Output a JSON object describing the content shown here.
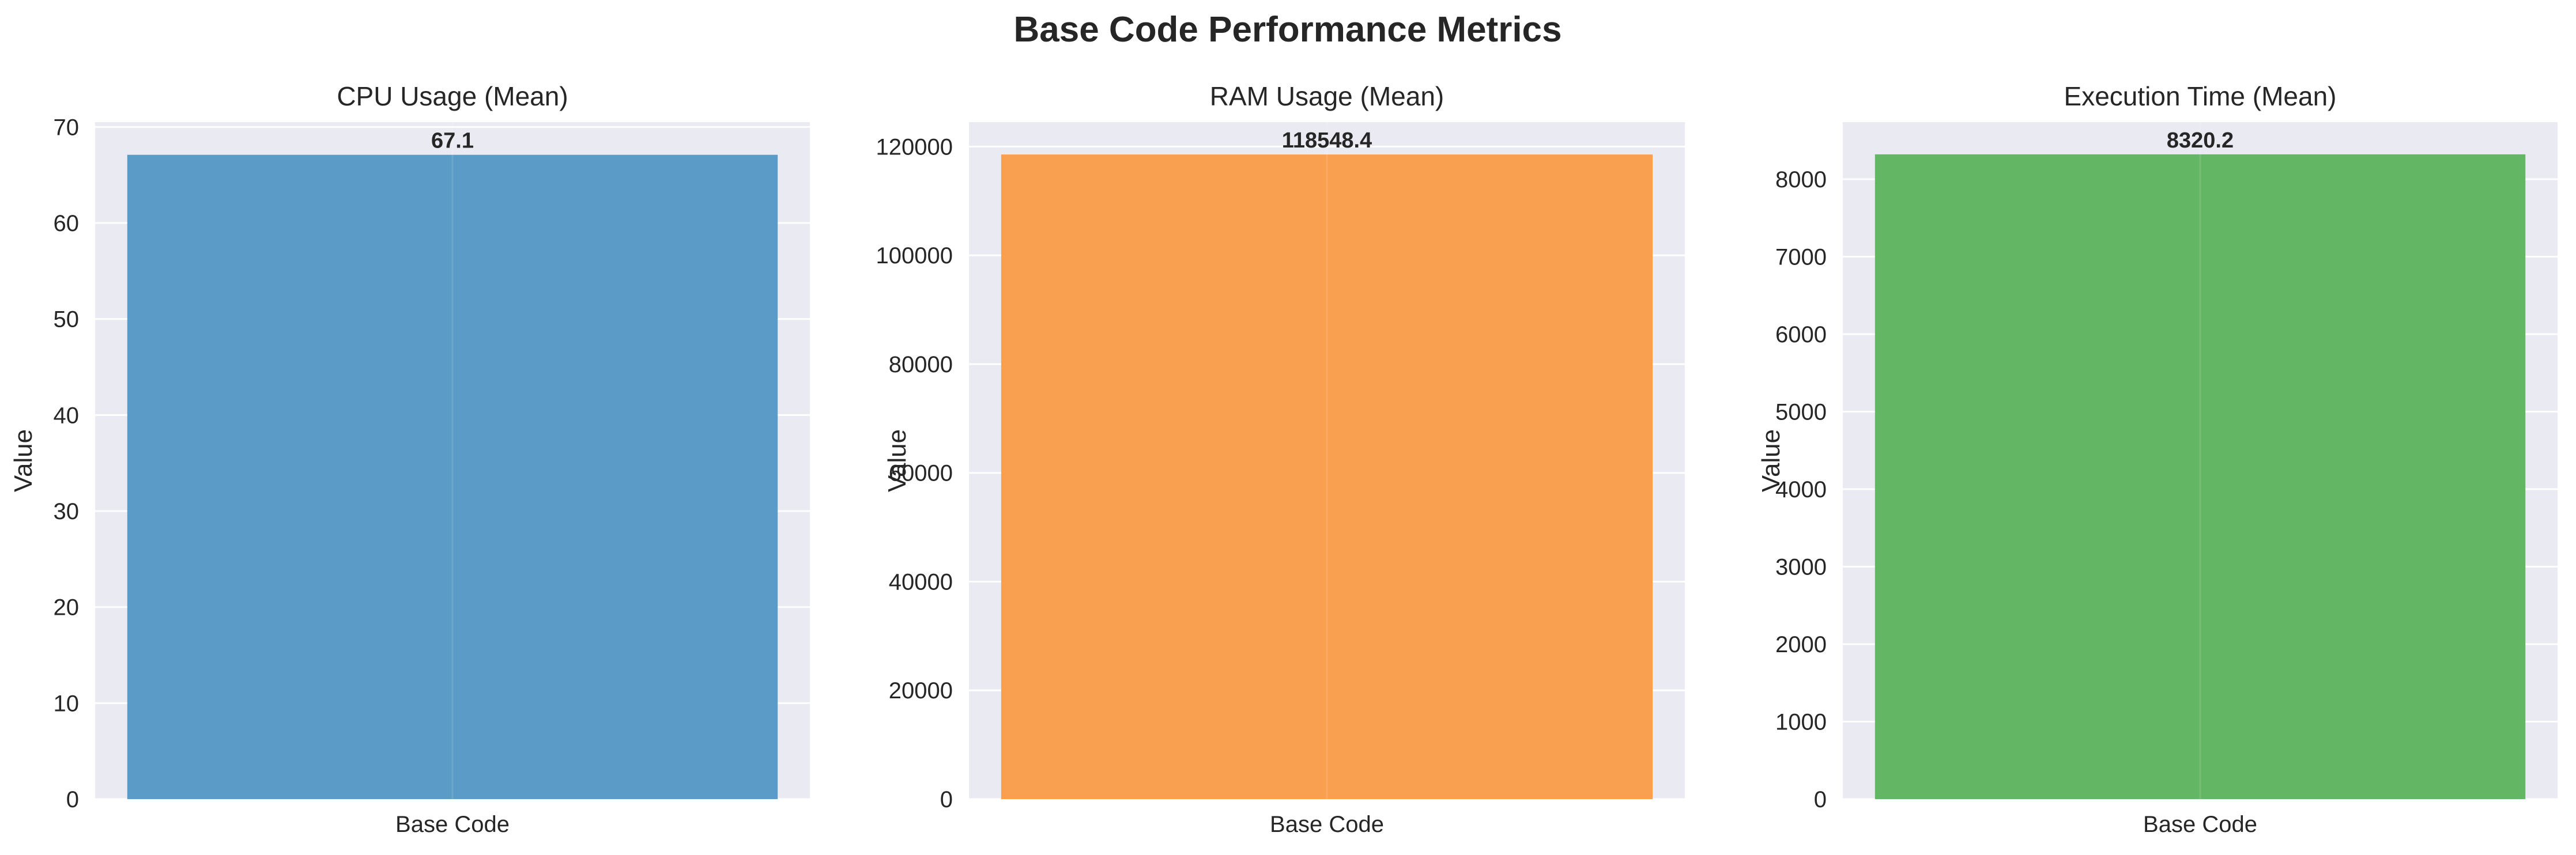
{
  "figure": {
    "title": "Base Code Performance Metrics"
  },
  "chart_data": [
    {
      "type": "bar",
      "title": "CPU Usage (Mean)",
      "xlabel": "",
      "ylabel": "Value",
      "categories": [
        "Base Code"
      ],
      "values": [
        67.1
      ],
      "value_labels": [
        "67.1"
      ],
      "ylim": [
        0,
        70.5
      ],
      "yticks": [
        0,
        10,
        20,
        30,
        40,
        50,
        60,
        70
      ],
      "color": "#5b9bc7",
      "grid": true
    },
    {
      "type": "bar",
      "title": "RAM Usage (Mean)",
      "xlabel": "",
      "ylabel": "Value",
      "categories": [
        "Base Code"
      ],
      "values": [
        118548.4
      ],
      "value_labels": [
        "118548.4"
      ],
      "ylim": [
        0,
        124500
      ],
      "yticks": [
        0,
        20000,
        40000,
        60000,
        80000,
        100000,
        120000
      ],
      "color": "#f99f50",
      "grid": true
    },
    {
      "type": "bar",
      "title": "Execution Time (Mean)",
      "xlabel": "",
      "ylabel": "Value",
      "categories": [
        "Base Code"
      ],
      "values": [
        8320.2
      ],
      "value_labels": [
        "8320.2"
      ],
      "ylim": [
        0,
        8736
      ],
      "yticks": [
        0,
        1000,
        2000,
        3000,
        4000,
        5000,
        6000,
        7000,
        8000
      ],
      "color": "#63b664",
      "grid": true
    }
  ]
}
